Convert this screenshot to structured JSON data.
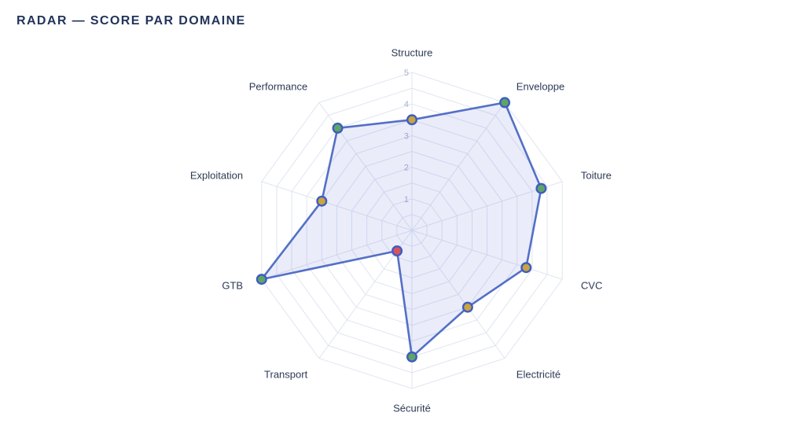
{
  "title": "RADAR — SCORE PAR DOMAINE",
  "colors": {
    "line": "#5470c6",
    "area": "rgba(90,110,215,0.13)",
    "grid": "#e0e5f0",
    "point_high": "#5fa566",
    "point_mid": "#c9a440",
    "point_low": "#d9535e"
  },
  "chart_data": {
    "type": "radar",
    "title": "RADAR — SCORE PAR DOMAINE",
    "rmax": 5,
    "ticks": [
      1,
      2,
      3,
      4,
      5
    ],
    "grid": true,
    "categories": [
      "Structure",
      "Enveloppe",
      "Toiture",
      "CVC",
      "Electricité",
      "Sécurité",
      "Transport",
      "GTB",
      "Exploitation",
      "Performance"
    ],
    "values": [
      3.5,
      5.0,
      4.3,
      3.8,
      3.0,
      4.0,
      0.8,
      5.0,
      3.0,
      4.0
    ],
    "point_colors": [
      "#c9a440",
      "#5fa566",
      "#5fa566",
      "#c9a440",
      "#c9a440",
      "#5fa566",
      "#d9535e",
      "#5fa566",
      "#c9a440",
      "#5fa566"
    ]
  }
}
